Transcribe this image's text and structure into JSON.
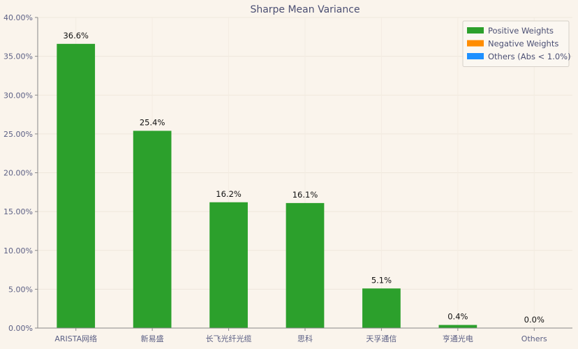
{
  "chart_data": {
    "type": "bar",
    "title": "Sharpe Mean Variance",
    "categories": [
      "ARISTA网络",
      "新易盛",
      "长飞光纤光缆",
      "思科",
      "天孚通信",
      "亨通光电",
      "Others"
    ],
    "values": [
      36.6,
      25.4,
      16.2,
      16.1,
      5.1,
      0.4,
      0.0
    ],
    "data_labels": [
      "36.6%",
      "25.4%",
      "16.2%",
      "16.1%",
      "5.1%",
      "0.4%",
      "0.0%"
    ],
    "xlabel": "",
    "ylabel": "",
    "ylim": [
      0,
      40
    ],
    "yticks": [
      0,
      5,
      10,
      15,
      20,
      25,
      30,
      35,
      40
    ],
    "ytick_labels": [
      "0.00%",
      "5.00%",
      "10.00%",
      "15.00%",
      "20.00%",
      "25.00%",
      "30.00%",
      "35.00%",
      "40.00%"
    ],
    "grid": true,
    "legend_position": "top-right",
    "legend": [
      {
        "label": "Positive Weights",
        "color": "#2ca02c"
      },
      {
        "label": "Negative Weights",
        "color": "#ff8c00"
      },
      {
        "label": "Others (Abs < 1.0%)",
        "color": "#1e90ff"
      }
    ],
    "bar_color": "#2ca02c"
  }
}
